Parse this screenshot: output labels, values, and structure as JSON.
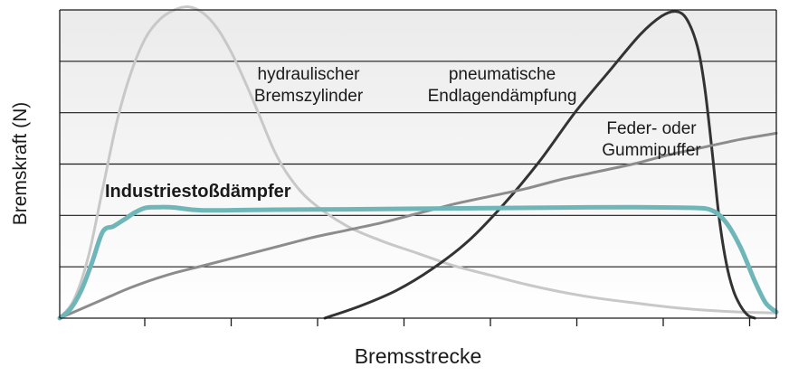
{
  "chart_data": {
    "type": "line",
    "title": "",
    "xlabel": "Bremsstrecke",
    "ylabel": "Bremskraft (N)",
    "xlim": [
      0,
      100
    ],
    "ylim": [
      0,
      100
    ],
    "grid": true,
    "x_tick_count": 8,
    "y_grid_count": 5,
    "colors": {
      "background_top": "#ebebeb",
      "background_bottom": "#ffffff",
      "grid": "#1a1a1a"
    },
    "series": [
      {
        "name": "hydraulischer Bremszylinder",
        "label_lines": [
          "hydraulischer",
          "Bremszylinder"
        ],
        "color": "#c8c8c8",
        "width": 3,
        "bold_label": false,
        "points": [
          [
            0,
            0
          ],
          [
            2,
            6
          ],
          [
            4,
            20
          ],
          [
            6,
            42
          ],
          [
            8,
            64
          ],
          [
            10,
            80
          ],
          [
            12,
            91
          ],
          [
            14,
            97
          ],
          [
            16,
            100
          ],
          [
            18,
            101
          ],
          [
            20,
            99
          ],
          [
            22,
            94
          ],
          [
            24,
            86
          ],
          [
            26,
            76
          ],
          [
            28,
            65
          ],
          [
            30,
            54
          ],
          [
            32,
            46
          ],
          [
            35,
            38
          ],
          [
            40,
            30
          ],
          [
            45,
            25
          ],
          [
            50,
            21
          ],
          [
            55,
            17
          ],
          [
            60,
            14
          ],
          [
            65,
            11
          ],
          [
            70,
            8.5
          ],
          [
            75,
            6.5
          ],
          [
            80,
            5
          ],
          [
            85,
            3.6
          ],
          [
            90,
            2.6
          ],
          [
            95,
            2
          ],
          [
            100,
            1.7
          ]
        ]
      },
      {
        "name": "pneumatische Endlagendämpfung",
        "label_lines": [
          "pneumatische",
          "Endlagendämpfung"
        ],
        "color": "#333333",
        "width": 3,
        "bold_label": false,
        "points": [
          [
            37,
            0
          ],
          [
            42,
            4
          ],
          [
            47,
            9
          ],
          [
            52,
            16
          ],
          [
            57,
            25
          ],
          [
            62,
            37
          ],
          [
            67,
            51
          ],
          [
            72,
            67
          ],
          [
            77,
            81
          ],
          [
            81,
            92
          ],
          [
            84,
            98
          ],
          [
            86,
            99.5
          ],
          [
            87.5,
            97
          ],
          [
            89,
            88
          ],
          [
            90,
            75
          ],
          [
            91,
            55
          ],
          [
            92,
            33
          ],
          [
            93,
            18
          ],
          [
            94,
            9
          ],
          [
            95,
            4
          ],
          [
            96,
            1
          ],
          [
            97,
            0
          ]
        ]
      },
      {
        "name": "Feder- oder Gummipuffer",
        "label_lines": [
          "Feder-  oder",
          "Gummipuffer"
        ],
        "color": "#8c8c8c",
        "width": 3,
        "bold_label": false,
        "points": [
          [
            0,
            0
          ],
          [
            5,
            5
          ],
          [
            10,
            10
          ],
          [
            15,
            14
          ],
          [
            20,
            17
          ],
          [
            25,
            20
          ],
          [
            30,
            23
          ],
          [
            35,
            26
          ],
          [
            40,
            28.5
          ],
          [
            45,
            31
          ],
          [
            50,
            34
          ],
          [
            55,
            37
          ],
          [
            60,
            39.5
          ],
          [
            65,
            42
          ],
          [
            70,
            45
          ],
          [
            75,
            47.5
          ],
          [
            80,
            50
          ],
          [
            85,
            53
          ],
          [
            90,
            55.5
          ],
          [
            95,
            58
          ],
          [
            100,
            60
          ]
        ]
      },
      {
        "name": "Industriestoßdämpfer",
        "label_lines": [
          "Industriestoßdämpfer"
        ],
        "color": "#6fb6b8",
        "width": 5,
        "bold_label": true,
        "points": [
          [
            0,
            0
          ],
          [
            1.5,
            3
          ],
          [
            3,
            9
          ],
          [
            4.5,
            18
          ],
          [
            6,
            28
          ],
          [
            7.5,
            29.8
          ],
          [
            9,
            32
          ],
          [
            10.5,
            34.3
          ],
          [
            12,
            35.8
          ],
          [
            14,
            36
          ],
          [
            16,
            35.9
          ],
          [
            20,
            35
          ],
          [
            30,
            35.2
          ],
          [
            40,
            35.3
          ],
          [
            50,
            35.5
          ],
          [
            60,
            35.7
          ],
          [
            70,
            35.9
          ],
          [
            80,
            36
          ],
          [
            88,
            35.8
          ],
          [
            91,
            35
          ],
          [
            93,
            31
          ],
          [
            95,
            23
          ],
          [
            97,
            12
          ],
          [
            98.5,
            5
          ],
          [
            100,
            2
          ]
        ]
      }
    ]
  }
}
